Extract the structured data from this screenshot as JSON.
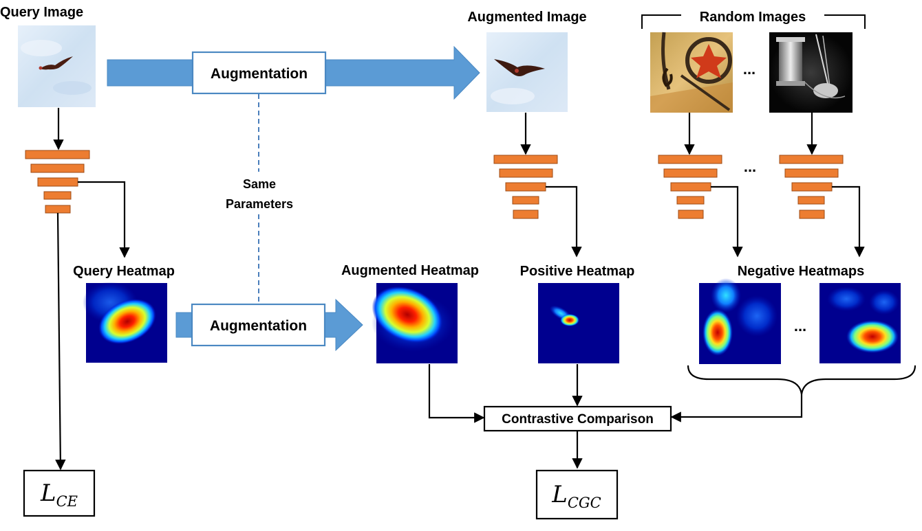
{
  "labels": {
    "query_image": "Query Image",
    "augmented_image": "Augmented Image",
    "random_images": "Random Images",
    "augmentation_top": "Augmentation",
    "augmentation_bottom": "Augmentation",
    "same_line1": "Same",
    "same_line2": "Parameters",
    "query_heatmap": "Query Heatmap",
    "augmented_heatmap": "Augmented Heatmap",
    "positive_heatmap": "Positive Heatmap",
    "negative_heatmaps": "Negative Heatmaps",
    "contrastive": "Contrastive Comparison",
    "ellipsis": "..."
  },
  "loss_ce": {
    "base": "L",
    "sub": "CE"
  },
  "loss_cgc": {
    "base": "L",
    "sub": "CGC"
  },
  "colors": {
    "arrow_fill": "#5B9BD5",
    "arrow_border": "#4A88C2",
    "layer_fill": "#ED7D31",
    "dashed_line": "#4A7EBB",
    "sky": "#D6E6F4",
    "heatmap_bg": "#00008F"
  }
}
